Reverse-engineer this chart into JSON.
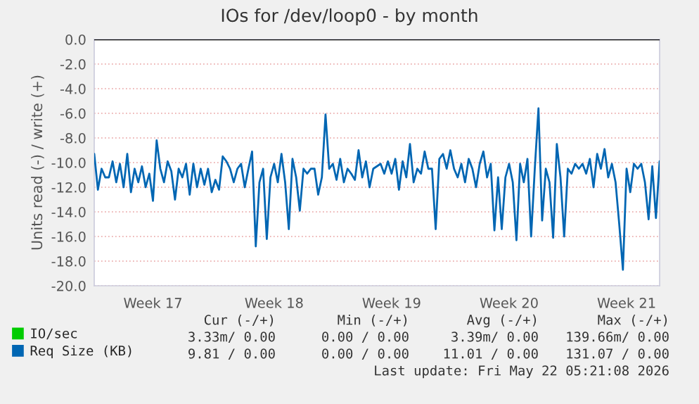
{
  "chart_data": {
    "type": "line",
    "title": "IOs for /dev/loop0 - by month",
    "ylabel": "Units read (-) / write (+)",
    "categories": [
      null,
      null,
      null,
      null,
      null,
      null,
      null,
      null,
      null,
      null,
      null,
      null,
      null,
      null,
      null,
      null,
      "Week 17",
      null,
      null,
      null,
      null,
      null,
      null,
      null,
      null,
      null,
      null,
      null,
      null,
      null,
      null,
      null,
      null,
      null,
      null,
      null,
      null,
      null,
      null,
      null,
      null,
      null,
      null,
      null,
      null,
      null,
      null,
      null,
      null,
      "Week 18",
      null,
      null,
      null,
      null,
      null,
      null,
      null,
      null,
      null,
      null,
      null,
      null,
      null,
      null,
      null,
      null,
      null,
      null,
      null,
      null,
      null,
      null,
      null,
      null,
      null,
      null,
      null,
      null,
      null,
      null,
      null,
      "Week 19",
      null,
      null,
      null,
      null,
      null,
      null,
      null,
      null,
      null,
      null,
      null,
      null,
      null,
      null,
      null,
      null,
      null,
      null,
      null,
      null,
      null,
      null,
      null,
      null,
      null,
      null,
      null,
      null,
      null,
      null,
      null,
      "Week 20",
      null,
      null,
      null,
      null,
      null,
      null,
      null,
      null,
      null,
      null,
      null,
      null,
      null,
      null,
      null,
      null,
      null,
      null,
      null,
      null,
      null,
      null,
      null,
      null,
      null,
      null,
      null,
      null,
      null,
      null,
      null,
      "Week 21",
      null,
      null,
      null,
      null,
      null,
      null,
      null,
      null,
      null
    ],
    "ylim": [
      -20,
      0
    ],
    "yticks": [
      {
        "value": 0,
        "label": "0.0"
      },
      {
        "value": -2,
        "label": "-2.0"
      },
      {
        "value": -4,
        "label": "-4.0"
      },
      {
        "value": -6,
        "label": "-6.0"
      },
      {
        "value": -8,
        "label": "-8.0"
      },
      {
        "value": -10,
        "label": "-10.0"
      },
      {
        "value": -12,
        "label": "-12.0"
      },
      {
        "value": -14,
        "label": "-14.0"
      },
      {
        "value": -16,
        "label": "-16.0"
      },
      {
        "value": -18,
        "label": "-18.0"
      },
      {
        "value": -20,
        "label": "-20.0"
      }
    ],
    "grid": "y",
    "legend": "bottom left",
    "marker": "none",
    "line_style": "solid",
    "ref_lines": [
      {
        "axis": "y",
        "value": 0,
        "label": null,
        "color": "#000000"
      }
    ],
    "series": [
      {
        "name": "IO/sec",
        "color": "#00cc00",
        "values": [
          null,
          null,
          null,
          null,
          null,
          null,
          null,
          null,
          null,
          null,
          null,
          null,
          null,
          null,
          null,
          null,
          null,
          null,
          null,
          null,
          null,
          null,
          null,
          null,
          null,
          null,
          null,
          null,
          null,
          null,
          null,
          null,
          null,
          null,
          null,
          null,
          null,
          null,
          null,
          null,
          null,
          null,
          null,
          null,
          null,
          null,
          null,
          null,
          null,
          null,
          null,
          null,
          null,
          null,
          null,
          null,
          null,
          null,
          null,
          null,
          null,
          null,
          null,
          null,
          null,
          null,
          null,
          null,
          null,
          null,
          null,
          null,
          null,
          null,
          null,
          null,
          null,
          null,
          null,
          null,
          null,
          null,
          null,
          null,
          null,
          null,
          null,
          null,
          null,
          null,
          null,
          null,
          null,
          null,
          null,
          null,
          null,
          null,
          null,
          null,
          null,
          null,
          null,
          null,
          null,
          null,
          null,
          null,
          null,
          null,
          null,
          null,
          null,
          null,
          null,
          null,
          null,
          null,
          null,
          null,
          null,
          null,
          null,
          null,
          null,
          null,
          null,
          null,
          null,
          null,
          null,
          null,
          null,
          null,
          null,
          null,
          null,
          null,
          null,
          null,
          null,
          null,
          null,
          null,
          null,
          null,
          null,
          null,
          null,
          null,
          null,
          null,
          null,
          null,
          null
        ]
      },
      {
        "name": "Req Size (KB)",
        "color": "#0066b3",
        "values": [
          -9.3,
          -12.2,
          -10.5,
          -11.2,
          -11.2,
          -9.9,
          -11.6,
          -10.1,
          -12.0,
          -9.3,
          -12.4,
          -10.5,
          -11.6,
          -10.3,
          -12.0,
          -10.9,
          -13.1,
          -8.2,
          -10.5,
          -11.6,
          -9.9,
          -10.7,
          -13.0,
          -10.5,
          -11.2,
          -10.1,
          -12.6,
          -10.1,
          -12.0,
          -10.5,
          -11.8,
          -10.5,
          -12.4,
          -11.4,
          -12.2,
          -9.5,
          -9.9,
          -10.5,
          -11.6,
          -10.5,
          -10.1,
          -12.0,
          -10.5,
          -9.1,
          -16.8,
          -11.6,
          -10.5,
          -16.2,
          -11.2,
          -10.1,
          -11.6,
          -9.3,
          -11.6,
          -15.4,
          -9.7,
          -11.2,
          -13.9,
          -10.5,
          -10.9,
          -10.5,
          -10.5,
          -12.6,
          -11.2,
          -6.1,
          -10.5,
          -10.1,
          -11.4,
          -9.7,
          -11.6,
          -10.5,
          -10.9,
          -11.4,
          -9.0,
          -11.2,
          -9.9,
          -12.0,
          -10.5,
          -10.3,
          -10.1,
          -10.9,
          -9.9,
          -10.9,
          -9.7,
          -12.2,
          -9.9,
          -11.2,
          -8.5,
          -11.6,
          -10.5,
          -10.9,
          -9.1,
          -10.5,
          -10.5,
          -15.4,
          -9.7,
          -9.3,
          -10.5,
          -9.0,
          -10.5,
          -11.2,
          -10.1,
          -11.6,
          -9.7,
          -10.5,
          -12.0,
          -10.1,
          -9.1,
          -11.2,
          -10.1,
          -15.5,
          -11.2,
          -15.4,
          -11.2,
          -10.1,
          -11.6,
          -16.3,
          -10.1,
          -11.6,
          -9.7,
          -16.0,
          -10.5,
          -5.6,
          -14.7,
          -10.5,
          -11.6,
          -16.1,
          -8.5,
          -11.2,
          -16.0,
          -10.5,
          -10.9,
          -10.1,
          -10.5,
          -10.1,
          -10.9,
          -9.7,
          -12.0,
          -9.3,
          -10.5,
          -8.9,
          -11.2,
          -10.1,
          -11.6,
          -15.0,
          -18.7,
          -10.5,
          -12.4,
          -10.1,
          -10.5,
          -10.1,
          -11.6,
          -14.6,
          -10.3,
          -14.5,
          -9.9
        ]
      }
    ],
    "annotations": [
      "Cur (-/+)",
      "Min (-/+)",
      "Avg (-/+)",
      "Max (-/+)",
      "3.33m/ 0.00",
      "0.00 / 0.00",
      "3.39m/ 0.00",
      "139.66m/ 0.00",
      "9.81 / 0.00",
      "0.00 / 0.00",
      "11.01 / 0.00",
      "131.07 / 0.00",
      "Last update: Fri May 22 05:21:08 2026"
    ]
  }
}
